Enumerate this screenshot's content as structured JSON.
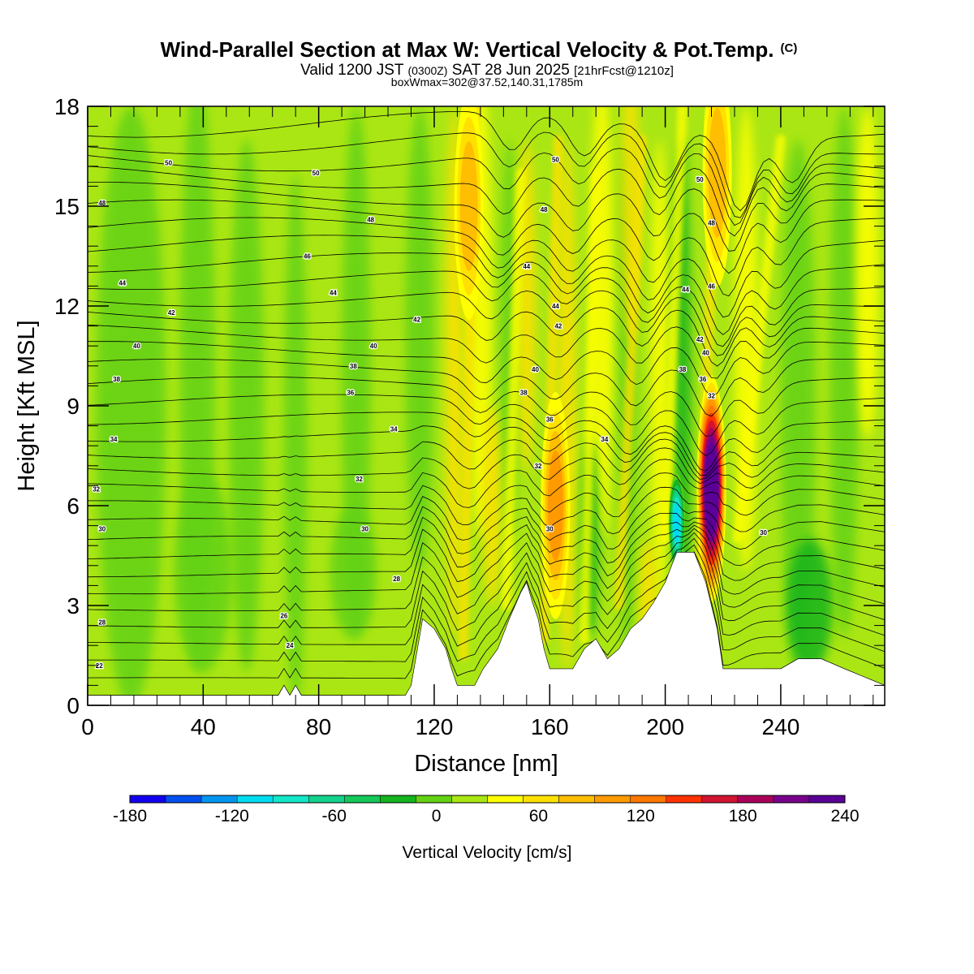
{
  "header": {
    "title": "Wind-Parallel Section at Max W: Vertical Velocity & Pot.Temp.",
    "copyright": "(C)",
    "valid_a": "Valid 1200 JST",
    "valid_b": "(0300Z)",
    "valid_c": "SAT 28 Jun 2025",
    "valid_d": "[21hrFcst@1210z]",
    "box_info": "boxWmax=302@37.52,140.31,1785m"
  },
  "chart_data": {
    "type": "heatmap",
    "xlabel": "Distance [nm]",
    "ylabel": "Height [Kft MSL]",
    "xlim": [
      0,
      276
    ],
    "ylim": [
      0,
      18
    ],
    "x_ticks": [
      0,
      40,
      80,
      120,
      160,
      200,
      240
    ],
    "y_ticks": [
      0,
      3,
      6,
      9,
      12,
      15,
      18
    ],
    "colorbar": {
      "label": "Vertical Velocity [cm/s]",
      "min": -180,
      "max": 240,
      "step": 20,
      "tick_values": [
        -180,
        -120,
        -60,
        0,
        60,
        120,
        180,
        240
      ],
      "tick_labels": [
        "-180",
        "-120",
        "-60",
        "0",
        "60",
        "120",
        "180",
        "240"
      ],
      "colors": [
        "#1400f0",
        "#0050f0",
        "#0096f0",
        "#00dcf0",
        "#14e6c8",
        "#14d28c",
        "#14c85a",
        "#14b41e",
        "#64d214",
        "#aae614",
        "#ffff00",
        "#ffe100",
        "#ffbe00",
        "#ff9b00",
        "#ff7800",
        "#ff3200",
        "#d21432",
        "#aa005a",
        "#78008c",
        "#5a0096"
      ]
    },
    "terrain_profile": [
      [
        0,
        0.3
      ],
      [
        66,
        0.3
      ],
      [
        68,
        0.6
      ],
      [
        70,
        0.3
      ],
      [
        72,
        0.6
      ],
      [
        74,
        0.3
      ],
      [
        110,
        0.3
      ],
      [
        112,
        0.6
      ],
      [
        116,
        2.6
      ],
      [
        120,
        2.3
      ],
      [
        124,
        1.7
      ],
      [
        126,
        1.1
      ],
      [
        128,
        0.6
      ],
      [
        134,
        0.6
      ],
      [
        137,
        1.1
      ],
      [
        142,
        1.7
      ],
      [
        146,
        2.6
      ],
      [
        150,
        3.4
      ],
      [
        152,
        3.7
      ],
      [
        154,
        3.1
      ],
      [
        156,
        2.6
      ],
      [
        158,
        1.7
      ],
      [
        160,
        1.1
      ],
      [
        164,
        1.1
      ],
      [
        168,
        1.1
      ],
      [
        170,
        1.4
      ],
      [
        172,
        1.7
      ],
      [
        176,
        2.0
      ],
      [
        180,
        1.4
      ],
      [
        184,
        1.7
      ],
      [
        188,
        2.3
      ],
      [
        192,
        2.6
      ],
      [
        196,
        3.1
      ],
      [
        200,
        3.7
      ],
      [
        204,
        4.6
      ],
      [
        210,
        4.6
      ],
      [
        214,
        3.7
      ],
      [
        218,
        2.3
      ],
      [
        220,
        1.1
      ],
      [
        224,
        1.1
      ],
      [
        240,
        1.1
      ],
      [
        246,
        1.4
      ],
      [
        254,
        1.4
      ],
      [
        262,
        1.1
      ],
      [
        276,
        0.6
      ]
    ],
    "updraft_cores": [
      {
        "x": 216,
        "z": 6.5,
        "w": 240
      },
      {
        "x": 132,
        "z": 15.0,
        "w": 60
      },
      {
        "x": 162,
        "z": 6.0,
        "w": 80
      },
      {
        "x": 218,
        "z": 16.0,
        "w": 60
      }
    ],
    "downdraft_cores": [
      {
        "x": 204,
        "z": 5.5,
        "w": -120
      }
    ],
    "theta_contour_labels": [
      {
        "x": 5,
        "z": 2.5,
        "text": "28"
      },
      {
        "x": 5,
        "z": 5.3,
        "text": "30"
      },
      {
        "x": 3,
        "z": 6.5,
        "text": "32"
      },
      {
        "x": 9,
        "z": 8.0,
        "text": "34"
      },
      {
        "x": 10,
        "z": 9.8,
        "text": "38"
      },
      {
        "x": 17,
        "z": 10.8,
        "text": "40"
      },
      {
        "x": 29,
        "z": 11.8,
        "text": "42"
      },
      {
        "x": 12,
        "z": 12.7,
        "text": "44"
      },
      {
        "x": 5,
        "z": 15.1,
        "text": "48"
      },
      {
        "x": 28,
        "z": 16.3,
        "text": "50"
      },
      {
        "x": 68,
        "z": 2.7,
        "text": "26"
      },
      {
        "x": 70,
        "z": 1.8,
        "text": "24"
      },
      {
        "x": 4,
        "z": 1.2,
        "text": "22"
      },
      {
        "x": 107,
        "z": 3.8,
        "text": "28"
      },
      {
        "x": 96,
        "z": 5.3,
        "text": "30"
      },
      {
        "x": 94,
        "z": 6.8,
        "text": "32"
      },
      {
        "x": 106,
        "z": 8.3,
        "text": "34"
      },
      {
        "x": 91,
        "z": 9.4,
        "text": "36"
      },
      {
        "x": 92,
        "z": 10.2,
        "text": "38"
      },
      {
        "x": 99,
        "z": 10.8,
        "text": "40"
      },
      {
        "x": 85,
        "z": 12.4,
        "text": "44"
      },
      {
        "x": 76,
        "z": 13.5,
        "text": "46"
      },
      {
        "x": 98,
        "z": 14.6,
        "text": "48"
      },
      {
        "x": 79,
        "z": 16.0,
        "text": "50"
      },
      {
        "x": 114,
        "z": 11.6,
        "text": "42"
      },
      {
        "x": 160,
        "z": 5.3,
        "text": "30"
      },
      {
        "x": 156,
        "z": 7.2,
        "text": "32"
      },
      {
        "x": 160,
        "z": 8.6,
        "text": "36"
      },
      {
        "x": 151,
        "z": 9.4,
        "text": "38"
      },
      {
        "x": 155,
        "z": 10.1,
        "text": "40"
      },
      {
        "x": 163,
        "z": 11.4,
        "text": "42"
      },
      {
        "x": 162,
        "z": 12.0,
        "text": "44"
      },
      {
        "x": 152,
        "z": 13.2,
        "text": "44"
      },
      {
        "x": 158,
        "z": 14.9,
        "text": "48"
      },
      {
        "x": 162,
        "z": 16.4,
        "text": "50"
      },
      {
        "x": 179,
        "z": 8.0,
        "text": "34"
      },
      {
        "x": 206,
        "z": 10.1,
        "text": "38"
      },
      {
        "x": 216,
        "z": 9.3,
        "text": "32"
      },
      {
        "x": 213,
        "z": 9.8,
        "text": "36"
      },
      {
        "x": 214,
        "z": 10.6,
        "text": "40"
      },
      {
        "x": 212,
        "z": 11.0,
        "text": "42"
      },
      {
        "x": 207,
        "z": 12.5,
        "text": "44"
      },
      {
        "x": 216,
        "z": 12.6,
        "text": "46"
      },
      {
        "x": 216,
        "z": 14.5,
        "text": "48"
      },
      {
        "x": 212,
        "z": 15.8,
        "text": "50"
      },
      {
        "x": 234,
        "z": 5.2,
        "text": "30"
      }
    ]
  }
}
